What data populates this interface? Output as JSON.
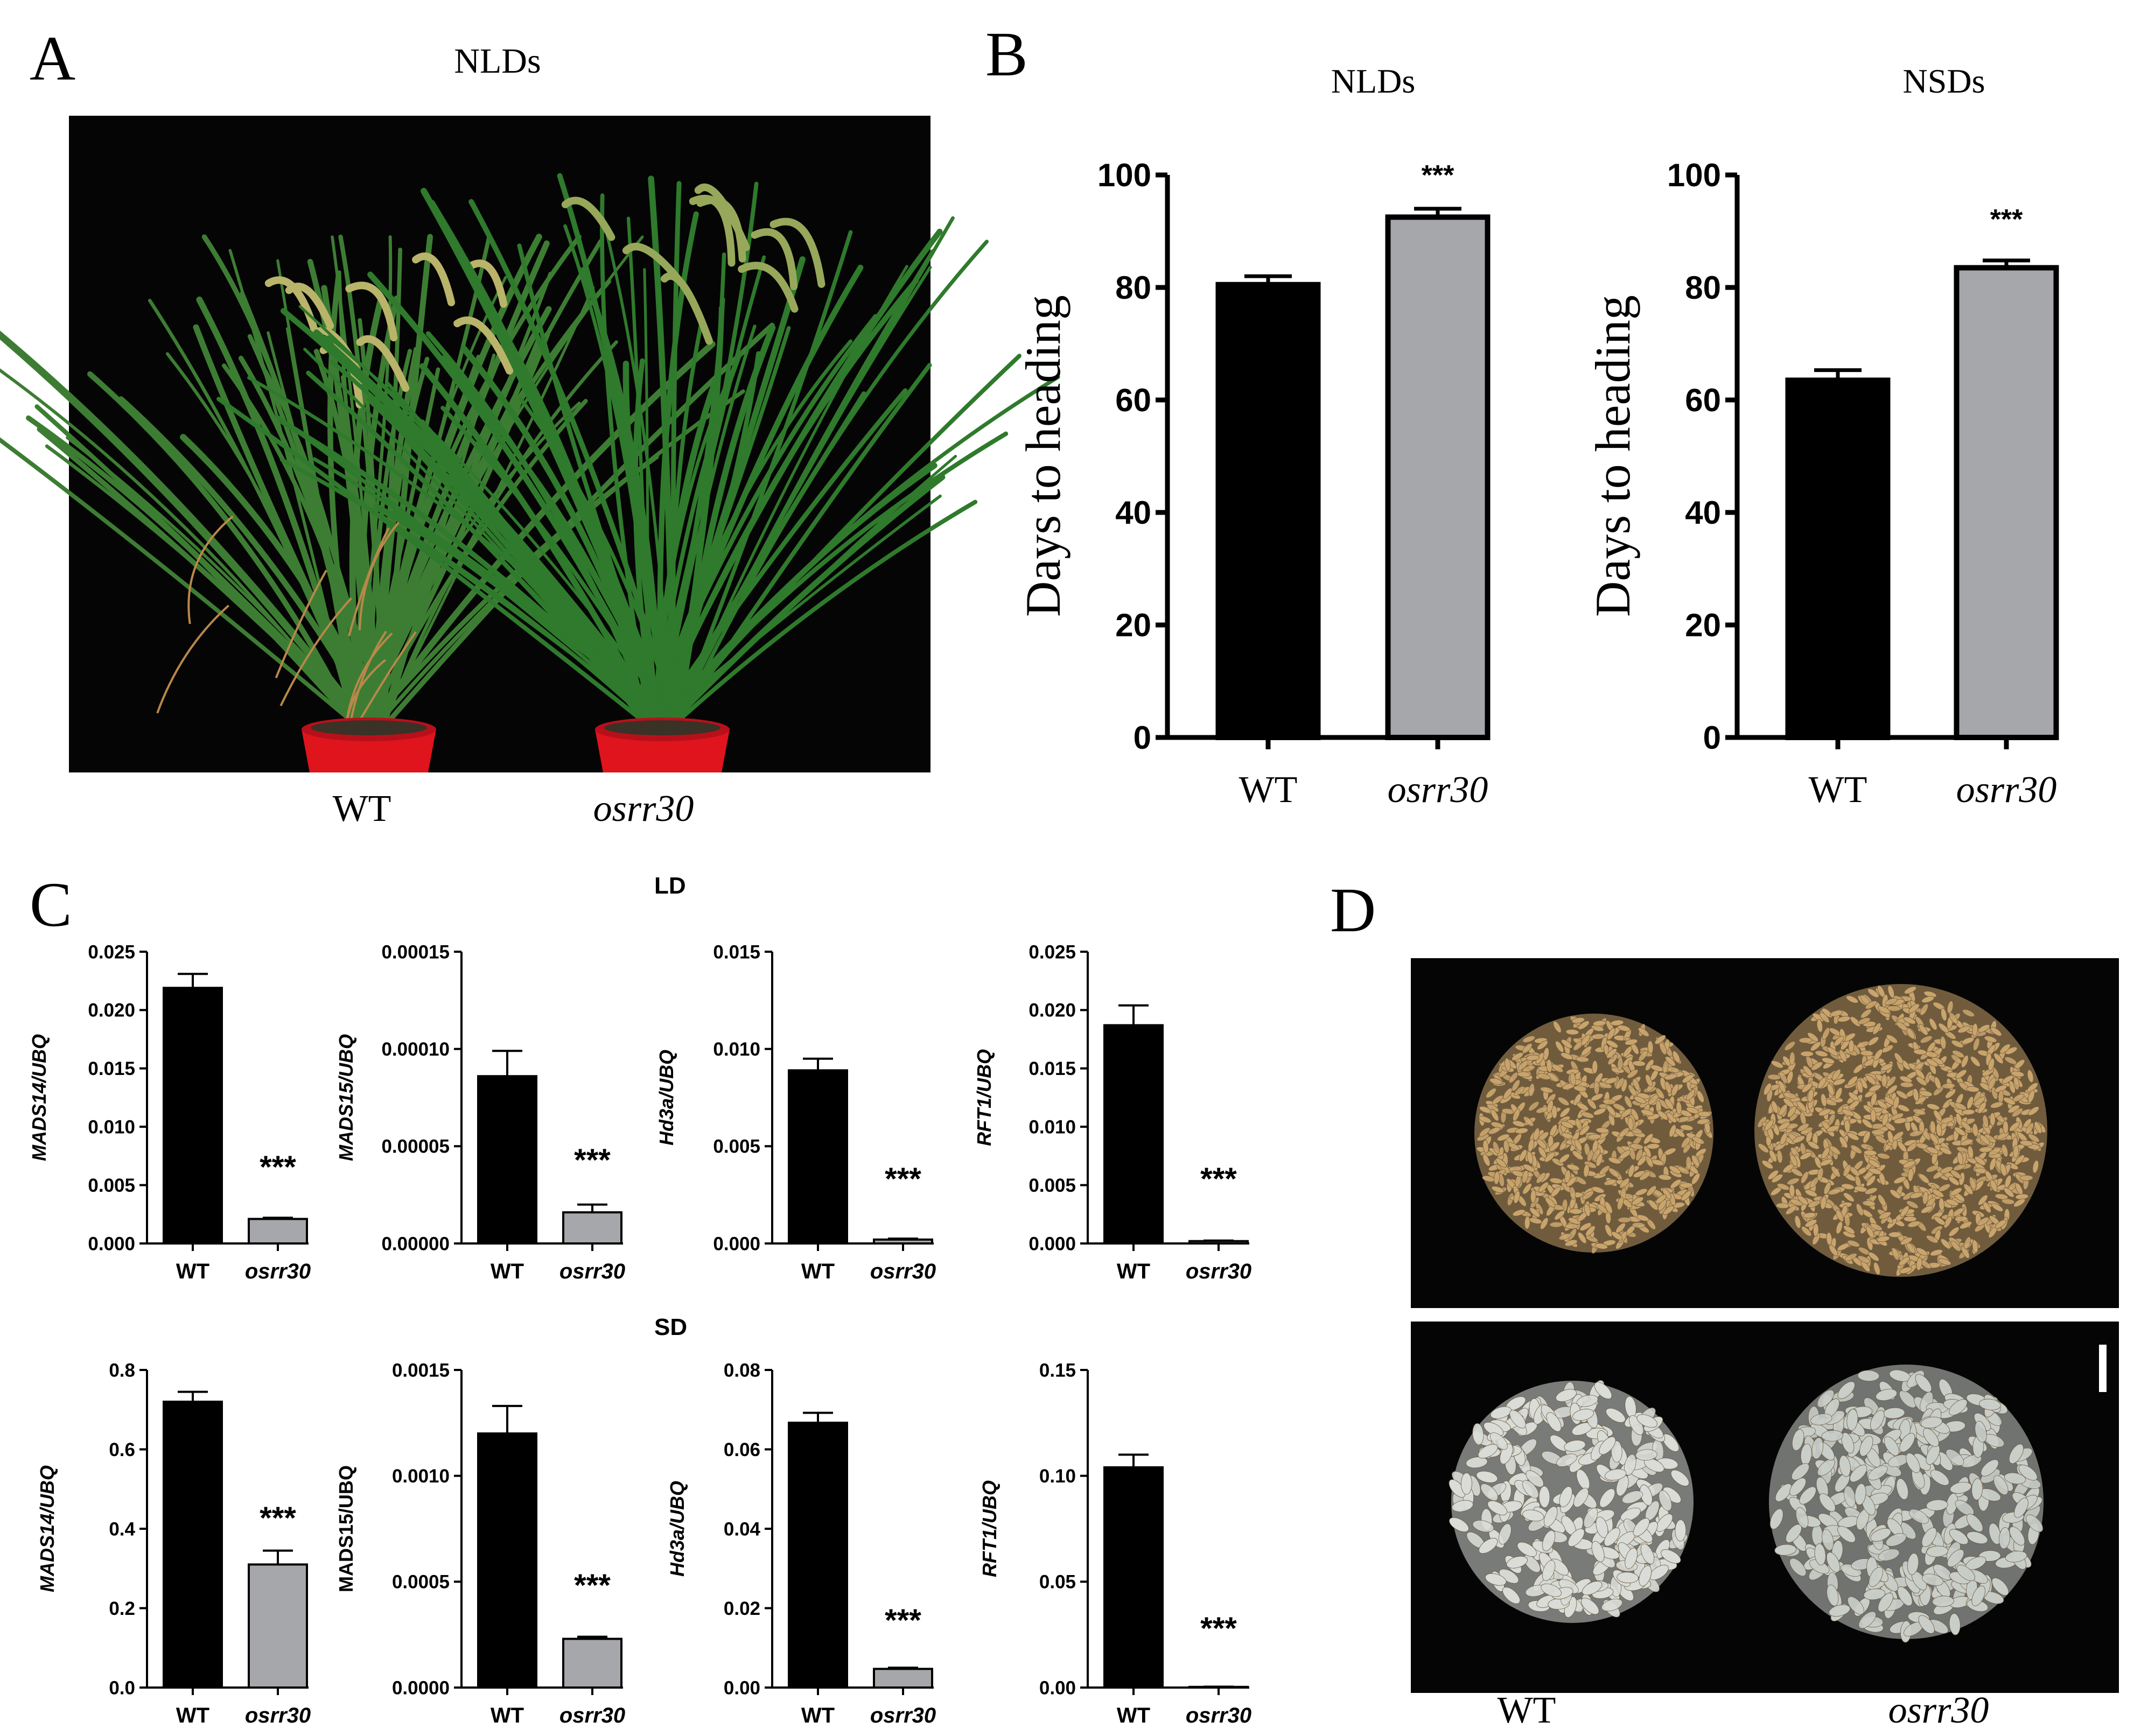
{
  "panel_a": {
    "letter": "A",
    "title": "NLDs",
    "labels": [
      "WT",
      "osrr30"
    ]
  },
  "panel_b": {
    "letter": "B"
  },
  "panel_c": {
    "letter": "C",
    "section_ld": "LD",
    "section_sd": "SD"
  },
  "panel_d": {
    "letter": "D",
    "labels": [
      "WT",
      "osrr30"
    ]
  },
  "colors": {
    "wt_bar": "#000000",
    "mutant_bar": "#a6a7ab",
    "photo_bg": "#050505",
    "pot": "#e0141c",
    "leaf": "#2f7a2c",
    "grain_brown": "#c9a46c",
    "grain_white": "#d9dcd7"
  },
  "chart_data": [
    {
      "id": "B-NLDs",
      "type": "bar",
      "title": "NLDs",
      "categories": [
        "WT",
        "osrr30"
      ],
      "values": [
        80.5,
        92.5
      ],
      "errors": [
        1.5,
        1.5
      ],
      "ylabel": "Days to heading",
      "ylim": [
        0,
        100
      ],
      "yticks": [
        "0",
        "20",
        "40",
        "60",
        "80",
        "100"
      ],
      "annotations": [
        "",
        "***"
      ]
    },
    {
      "id": "B-NSDs",
      "type": "bar",
      "title": "NSDs",
      "categories": [
        "WT",
        "osrr30"
      ],
      "values": [
        63.5,
        83.5
      ],
      "errors": [
        1.8,
        1.3
      ],
      "ylabel": "Days to heading",
      "ylim": [
        0,
        100
      ],
      "yticks": [
        "0",
        "20",
        "40",
        "60",
        "80",
        "100"
      ],
      "annotations": [
        "",
        "***"
      ]
    },
    {
      "id": "C-LD-MADS14",
      "type": "bar",
      "section": "LD",
      "categories": [
        "WT",
        "osrr30"
      ],
      "values": [
        0.0219,
        0.0021
      ],
      "errors": [
        0.0012,
        0.0001
      ],
      "ylabel": "MADS14/UBQ",
      "ylim": [
        0,
        0.025
      ],
      "yticks": [
        "0.000",
        "0.005",
        "0.010",
        "0.015",
        "0.020",
        "0.025"
      ],
      "annotations": [
        "",
        "***"
      ]
    },
    {
      "id": "C-LD-MADS15",
      "type": "bar",
      "section": "LD",
      "categories": [
        "WT",
        "osrr30"
      ],
      "values": [
        8.6e-05,
        1.6e-05
      ],
      "errors": [
        1.3e-05,
        4e-06
      ],
      "ylabel": "MADS15/UBQ",
      "ylim": [
        0,
        0.00015
      ],
      "yticks": [
        "0.00000",
        "0.00005",
        "0.00010",
        "0.00015"
      ],
      "annotations": [
        "",
        "***"
      ]
    },
    {
      "id": "C-LD-Hd3a",
      "type": "bar",
      "section": "LD",
      "categories": [
        "WT",
        "osrr30"
      ],
      "values": [
        0.0089,
        0.0002
      ],
      "errors": [
        0.0006,
        5e-05
      ],
      "ylabel": "Hd3a/UBQ",
      "ylim": [
        0,
        0.015
      ],
      "yticks": [
        "0.000",
        "0.005",
        "0.010",
        "0.015"
      ],
      "annotations": [
        "",
        "***"
      ]
    },
    {
      "id": "C-LD-RFT1",
      "type": "bar",
      "section": "LD",
      "categories": [
        "WT",
        "osrr30"
      ],
      "values": [
        0.0187,
        0.0002
      ],
      "errors": [
        0.0017,
        5e-05
      ],
      "ylabel": "RFT1/UBQ",
      "ylim": [
        0,
        0.025
      ],
      "yticks": [
        "0.000",
        "0.005",
        "0.010",
        "0.015",
        "0.020",
        "0.025"
      ],
      "annotations": [
        "",
        "***"
      ]
    },
    {
      "id": "C-SD-MADS14",
      "type": "bar",
      "section": "SD",
      "categories": [
        "WT",
        "osrr30"
      ],
      "values": [
        0.72,
        0.31
      ],
      "errors": [
        0.025,
        0.035
      ],
      "ylabel": "MADS14/UBQ",
      "ylim": [
        0,
        0.8
      ],
      "yticks": [
        "0.0",
        "0.2",
        "0.4",
        "0.6",
        "0.8"
      ],
      "annotations": [
        "",
        "***"
      ]
    },
    {
      "id": "C-SD-MADS15",
      "type": "bar",
      "section": "SD",
      "categories": [
        "WT",
        "osrr30"
      ],
      "values": [
        0.0012,
        0.00023
      ],
      "errors": [
        0.00013,
        1e-05
      ],
      "ylabel": "MADS15/UBQ",
      "ylim": [
        0,
        0.0015
      ],
      "yticks": [
        "0.0000",
        "0.0005",
        "0.0010",
        "0.0015"
      ],
      "annotations": [
        "",
        "***"
      ]
    },
    {
      "id": "C-SD-Hd3a",
      "type": "bar",
      "section": "SD",
      "categories": [
        "WT",
        "osrr30"
      ],
      "values": [
        0.0667,
        0.0047
      ],
      "errors": [
        0.0025,
        0.0003
      ],
      "ylabel": "Hd3a/UBQ",
      "ylim": [
        0,
        0.08
      ],
      "yticks": [
        "0.00",
        "0.02",
        "0.04",
        "0.06",
        "0.08"
      ],
      "annotations": [
        "",
        "***"
      ]
    },
    {
      "id": "C-SD-RFT1",
      "type": "bar",
      "section": "SD",
      "categories": [
        "WT",
        "osrr30"
      ],
      "values": [
        0.104,
        0.0003
      ],
      "errors": [
        0.006,
        0.0001
      ],
      "ylabel": "RFT1/UBQ",
      "ylim": [
        0,
        0.15
      ],
      "yticks": [
        "0.00",
        "0.05",
        "0.10",
        "0.15"
      ],
      "annotations": [
        "",
        "***"
      ]
    }
  ]
}
